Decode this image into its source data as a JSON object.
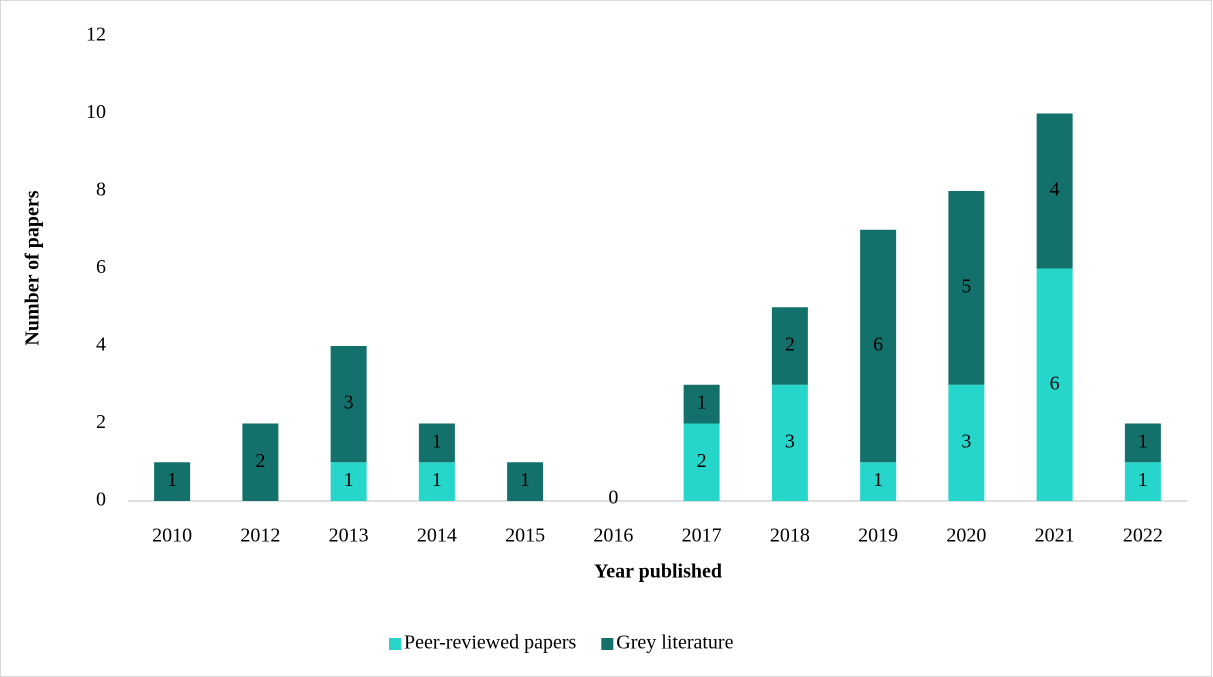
{
  "chart_data": {
    "type": "stacked_bar",
    "xlabel": "Year published",
    "ylabel": "Number of papers",
    "categories": [
      "2010",
      "2012",
      "2013",
      "2014",
      "2015",
      "2016",
      "2017",
      "2018",
      "2019",
      "2020",
      "2021",
      "2022"
    ],
    "series": [
      {
        "name": "Peer-reviewed papers",
        "color": "#26d6cb",
        "values": [
          0,
          0,
          1,
          1,
          0,
          0,
          2,
          3,
          1,
          3,
          6,
          1
        ],
        "value_labels": [
          null,
          null,
          "1",
          "1",
          null,
          "0",
          "2",
          "3",
          "1",
          "3",
          "6",
          "1"
        ]
      },
      {
        "name": "Grey literature",
        "color": "#13706a",
        "values": [
          1,
          2,
          3,
          1,
          1,
          0,
          1,
          2,
          6,
          5,
          4,
          1
        ],
        "value_labels": [
          "1",
          "2",
          "3",
          "1",
          "1",
          null,
          "1",
          "2",
          "6",
          "5",
          "4",
          "1"
        ]
      }
    ],
    "ylim": [
      0,
      12
    ],
    "yticks": [
      0,
      2,
      4,
      6,
      8,
      10,
      12
    ],
    "grid": false,
    "legend": "bottom"
  }
}
